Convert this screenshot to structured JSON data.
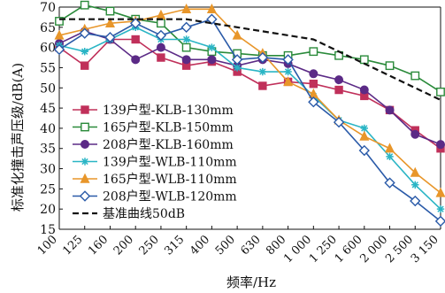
{
  "chart_data": {
    "type": "line",
    "title": "",
    "xlabel": "频率/Hz",
    "ylabel": "标准化撞击声压级/dB(A)",
    "categories": [
      "100",
      "125",
      "160",
      "200",
      "250",
      "315",
      "400",
      "500",
      "630",
      "800",
      "1 000",
      "1 250",
      "1 600",
      "2 000",
      "2 500",
      "3 150"
    ],
    "ylim": [
      15,
      70
    ],
    "yticks": [
      15,
      20,
      25,
      30,
      35,
      40,
      45,
      50,
      55,
      60,
      65,
      70
    ],
    "grid": false,
    "legend_position": "left-center",
    "series": [
      {
        "name": "139户型-KLB-130mm",
        "color": "#c0305a",
        "marker": "square-filled",
        "dash": false,
        "values": [
          60,
          55.5,
          62,
          62,
          57.5,
          55.5,
          56.5,
          54,
          50.5,
          51.5,
          51,
          49.5,
          48,
          44.5,
          39.5,
          35
        ]
      },
      {
        "name": "165户型-KLB-150mm",
        "color": "#2a8a3a",
        "marker": "square-open",
        "dash": false,
        "values": [
          66.5,
          70.5,
          69,
          67,
          66,
          60,
          59,
          58.5,
          58,
          58,
          59,
          58,
          57,
          55.5,
          53,
          49
        ]
      },
      {
        "name": "208户型-KLB-160mm",
        "color": "#5b2a86",
        "marker": "circle-filled",
        "dash": false,
        "values": [
          61,
          64,
          62,
          57,
          60,
          57,
          57,
          55.5,
          57,
          56,
          53.5,
          52,
          49.5,
          44.5,
          38.5,
          36
        ]
      },
      {
        "name": "139户型-WLB-110mm",
        "color": "#2ab5c5",
        "marker": "asterisk",
        "dash": false,
        "values": [
          60.5,
          59,
          62,
          65,
          62,
          62,
          60,
          55,
          54,
          54,
          48,
          42,
          40,
          33,
          26,
          20
        ]
      },
      {
        "name": "165户型-WLB-110mm",
        "color": "#e8962a",
        "marker": "triangle-filled",
        "dash": false,
        "values": [
          63,
          64.5,
          66,
          66.5,
          68,
          69.5,
          69.5,
          63,
          58.5,
          51.5,
          48.5,
          42,
          38,
          35,
          29,
          24
        ]
      },
      {
        "name": "208户型-WLB-120mm",
        "color": "#2a5aa8",
        "marker": "diamond-open",
        "dash": false,
        "values": [
          59.5,
          63.5,
          62.5,
          66,
          63,
          65,
          67,
          57,
          57.5,
          57,
          46.5,
          41.5,
          34.5,
          26.5,
          22,
          17
        ]
      },
      {
        "name": "基准曲线50dB",
        "color": "#111111",
        "marker": "none",
        "dash": true,
        "values": [
          67,
          67,
          67,
          67,
          67,
          67,
          66,
          65,
          64,
          63,
          62,
          59,
          56,
          53,
          50,
          47
        ]
      }
    ]
  }
}
